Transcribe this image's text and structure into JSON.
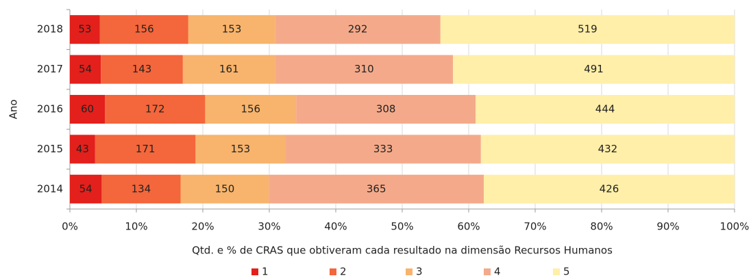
{
  "chart_data": {
    "type": "bar",
    "orientation": "horizontal",
    "stack": "percent",
    "ylabel": "Ano",
    "xlabel": "Qtd. e % de CRAS que obtiveram cada resultado na dimensão Recursos Humanos",
    "categories": [
      "2014",
      "2015",
      "2016",
      "2017",
      "2018"
    ],
    "series": [
      {
        "name": "1",
        "color": "#e3201b",
        "values": [
          54,
          43,
          60,
          54,
          53
        ]
      },
      {
        "name": "2",
        "color": "#f4663b",
        "values": [
          134,
          171,
          172,
          143,
          156
        ]
      },
      {
        "name": "3",
        "color": "#f8b46c",
        "values": [
          150,
          153,
          156,
          161,
          153
        ]
      },
      {
        "name": "4",
        "color": "#f4aa8a",
        "values": [
          365,
          333,
          308,
          310,
          292
        ]
      },
      {
        "name": "5",
        "color": "#ffefa9",
        "values": [
          426,
          432,
          444,
          491,
          519
        ]
      }
    ],
    "xlim": [
      0,
      100
    ],
    "xticks": [
      {
        "value": 0,
        "label": "0%"
      },
      {
        "value": 10,
        "label": "10%"
      },
      {
        "value": 20,
        "label": "20%"
      },
      {
        "value": 30,
        "label": "30%"
      },
      {
        "value": 40,
        "label": "40%"
      },
      {
        "value": 50,
        "label": "50%"
      },
      {
        "value": 60,
        "label": "60%"
      },
      {
        "value": 70,
        "label": "70%"
      },
      {
        "value": 80,
        "label": "80%"
      },
      {
        "value": 90,
        "label": "90%"
      },
      {
        "value": 100,
        "label": "100%"
      }
    ],
    "grid": true,
    "legend": "bottom"
  }
}
